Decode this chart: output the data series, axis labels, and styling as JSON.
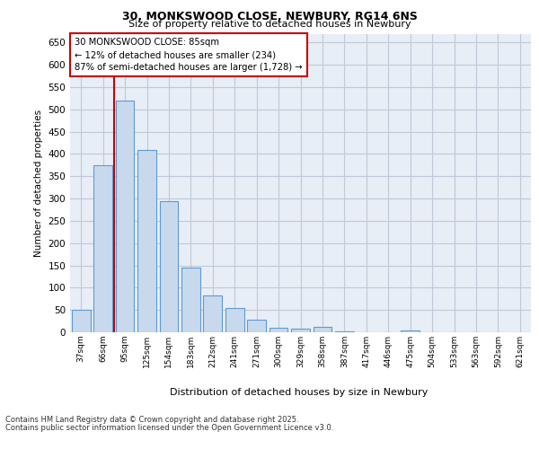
{
  "title_line1": "30, MONKSWOOD CLOSE, NEWBURY, RG14 6NS",
  "title_line2": "Size of property relative to detached houses in Newbury",
  "xlabel": "Distribution of detached houses by size in Newbury",
  "ylabel": "Number of detached properties",
  "categories": [
    "37sqm",
    "66sqm",
    "95sqm",
    "125sqm",
    "154sqm",
    "183sqm",
    "212sqm",
    "241sqm",
    "271sqm",
    "300sqm",
    "329sqm",
    "358sqm",
    "387sqm",
    "417sqm",
    "446sqm",
    "475sqm",
    "504sqm",
    "533sqm",
    "563sqm",
    "592sqm",
    "621sqm"
  ],
  "values": [
    50,
    375,
    520,
    410,
    295,
    145,
    83,
    55,
    28,
    10,
    8,
    12,
    3,
    1,
    1,
    4,
    1,
    1,
    1,
    1,
    1
  ],
  "bar_color": "#c9d9ed",
  "bar_edge_color": "#5b9bd5",
  "grid_color": "#c0c8d8",
  "background_color": "#e8eef5",
  "annotation_text": "30 MONKSWOOD CLOSE: 85sqm\n← 12% of detached houses are smaller (234)\n87% of semi-detached houses are larger (1,728) →",
  "annotation_box_color": "#ffffff",
  "annotation_box_edge": "#cc0000",
  "vline_color": "#cc0000",
  "footer_line1": "Contains HM Land Registry data © Crown copyright and database right 2025.",
  "footer_line2": "Contains public sector information licensed under the Open Government Licence v3.0.",
  "ylim": [
    0,
    670
  ],
  "yticks": [
    0,
    50,
    100,
    150,
    200,
    250,
    300,
    350,
    400,
    450,
    500,
    550,
    600,
    650
  ]
}
